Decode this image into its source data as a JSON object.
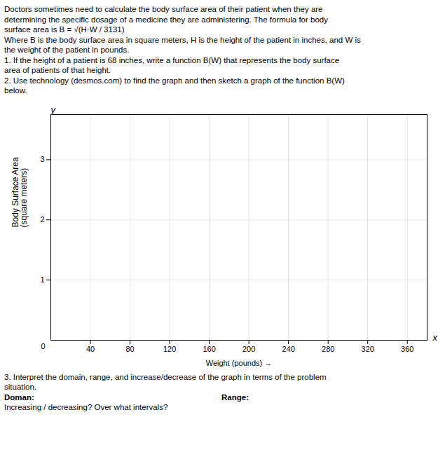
{
  "chart_data": {
    "type": "line",
    "subtitle": [
      "Doctors sometimes need to calculate the body surface area of their patient when they are",
      "determining the specific dosage of a medicine they are administering. The formula for body",
      "surface area is  B = √(H·W / 3131)",
      "Where B is the body surface area in square meters, H is the height of the patient in inches, and W is",
      "the weight of the patient in pounds.",
      "1. If the height of a patient is 68 inches, write a function B(W) that represents the body surface",
      "area of patients of that height.",
      "2. Use technology (desmos.com) to find the graph and then sketch a graph of the function B(W)",
      "below."
    ],
    "caption": [
      "3. Interpret the domain, range, and increase/decrease of the graph in terms of the problem",
      "situation.",
      [
        "Doman:",
        "Range:"
      ],
      "Increasing / decreasing? Over what intervals?"
    ],
    "annotations": [
      "x",
      "y",
      "0"
    ],
    "xlabel": "Weight (pounds)",
    "ylabel": "Body Surface Area\n(square meters)",
    "xlim": [
      0,
      380
    ],
    "ylim": [
      0,
      3.75
    ],
    "xticks": [
      40,
      80,
      120,
      160,
      200,
      240,
      280,
      320,
      360
    ],
    "yticks": [
      1,
      2,
      3
    ],
    "grid": true
  }
}
